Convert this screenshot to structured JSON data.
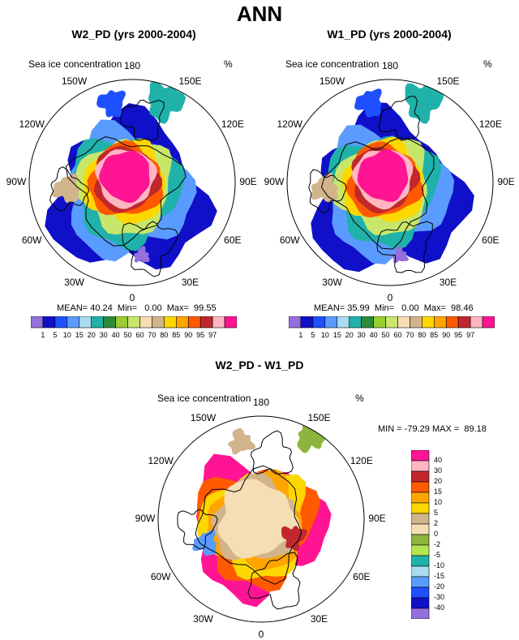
{
  "main_title": "ANN",
  "panel1": {
    "title": "W2_PD (yrs 2000-2004)",
    "variable": "Sea ice concentration",
    "units": "%",
    "stats": "MEAN= 40.24  Min=   0.00  Max=  99.55"
  },
  "panel2": {
    "title": "W1_PD (yrs 2000-2004)",
    "variable": "Sea ice concentration",
    "units": "%",
    "stats": "MEAN= 35.99  Min=   0.00  Max=  98.46"
  },
  "panel3": {
    "title": "W2_PD - W1_PD",
    "variable": "Sea ice concentration",
    "units": "%",
    "stats": "MIN = -79.29 MAX =  89.18"
  },
  "lon_labels": [
    "180",
    "150E",
    "120E",
    "90E",
    "60E",
    "30E",
    "0",
    "30W",
    "60W",
    "90W",
    "120W",
    "150W"
  ],
  "chart_data": [
    {
      "type": "heatmap",
      "title": "W2_PD (yrs 2000-2004)",
      "projection": "north polar stereographic",
      "variable": "Sea ice concentration (%)",
      "mean": 40.24,
      "min": 0.0,
      "max": 99.55,
      "levels": [
        1,
        5,
        10,
        15,
        20,
        30,
        40,
        50,
        60,
        70,
        80,
        85,
        90,
        95,
        97
      ],
      "colors": [
        "#9370db",
        "#1010c8",
        "#1e50ff",
        "#5a9bff",
        "#a8dcf0",
        "#20b2aa",
        "#2f8a3a",
        "#9acd32",
        "#c8e66a",
        "#f5deb3",
        "#d2b48c",
        "#ffd700",
        "#ffa500",
        "#ff5a00",
        "#c0282d",
        "#ffb6c1",
        "#ff1493"
      ]
    },
    {
      "type": "heatmap",
      "title": "W1_PD (yrs 2000-2004)",
      "projection": "north polar stereographic",
      "variable": "Sea ice concentration (%)",
      "mean": 35.99,
      "min": 0.0,
      "max": 98.46,
      "levels": [
        1,
        5,
        10,
        15,
        20,
        30,
        40,
        50,
        60,
        70,
        80,
        85,
        90,
        95,
        97
      ],
      "colors": [
        "#9370db",
        "#1010c8",
        "#1e50ff",
        "#5a9bff",
        "#a8dcf0",
        "#20b2aa",
        "#2f8a3a",
        "#9acd32",
        "#c8e66a",
        "#f5deb3",
        "#d2b48c",
        "#ffd700",
        "#ffa500",
        "#ff5a00",
        "#c0282d",
        "#ffb6c1",
        "#ff1493"
      ]
    },
    {
      "type": "heatmap",
      "title": "W2_PD - W1_PD",
      "projection": "north polar stereographic",
      "variable": "Sea ice concentration difference (%)",
      "min": -79.29,
      "max": 89.18,
      "levels": [
        40,
        30,
        20,
        15,
        10,
        5,
        2,
        0,
        -2,
        -5,
        -10,
        -15,
        -20,
        -30,
        -40
      ],
      "colors": [
        "#ff1493",
        "#ffb6c1",
        "#c0282d",
        "#ff5a00",
        "#ffa500",
        "#ffd700",
        "#d2b48c",
        "#f5deb3",
        "#8db43c",
        "#b4e650",
        "#20b2aa",
        "#a8dcf0",
        "#5a9bff",
        "#1e50ff",
        "#1010c8",
        "#9370db"
      ]
    }
  ]
}
